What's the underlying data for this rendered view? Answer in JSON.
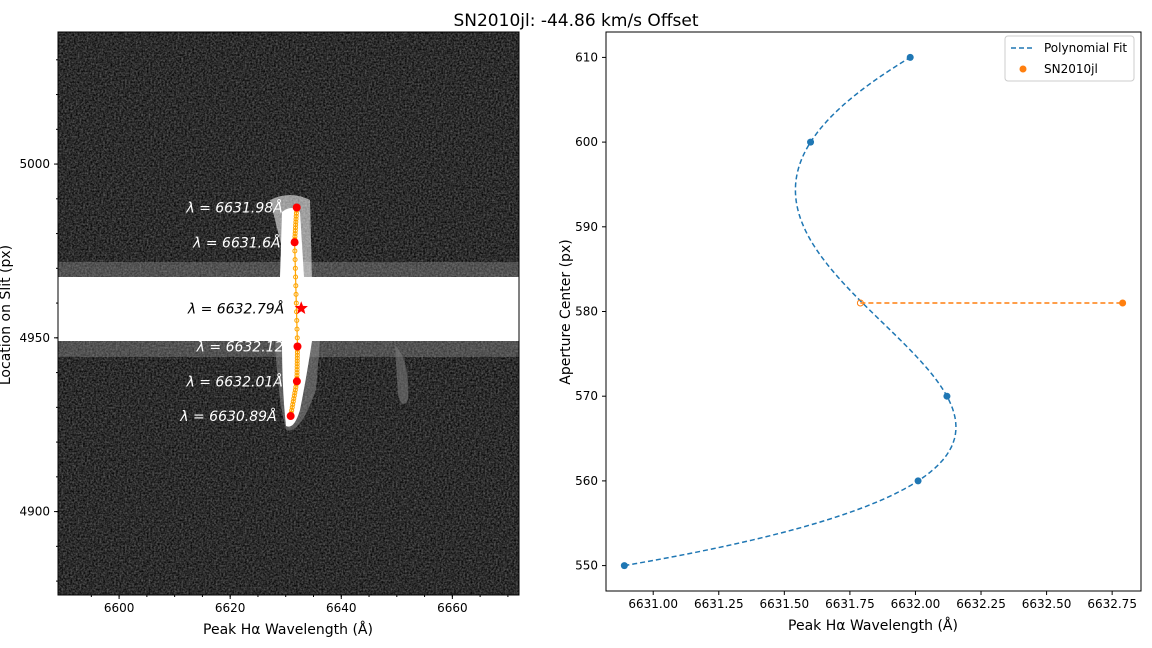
{
  "title": "SN2010jl: -44.86 km/s Offset",
  "chart_data": [
    {
      "type": "image",
      "xlabel": "Peak Hα Wavelength (Å)",
      "ylabel": "Location on Slit (px)",
      "xlim": [
        6589,
        6672
      ],
      "ylim": [
        4876,
        5038
      ],
      "xticks": [
        6600,
        6620,
        6640,
        6660
      ],
      "xtick_labels": [
        "6600",
        "6620",
        "6640",
        "6660"
      ],
      "yticks": [
        4900,
        4950,
        5000
      ],
      "ytick_labels": [
        "4900",
        "4950",
        "5000"
      ],
      "points": [
        {
          "x": 6631.98,
          "y": 4987.5,
          "label": "λ = 6631.98Å"
        },
        {
          "x": 6631.6,
          "y": 4977.5,
          "label": "λ = 6631.6Å"
        },
        {
          "x": 6632.12,
          "y": 4947.5,
          "label": "λ = 6632.12"
        },
        {
          "x": 6632.01,
          "y": 4937.5,
          "label": "λ = 6632.01Å"
        },
        {
          "x": 6630.89,
          "y": 4927.5,
          "label": "λ = 6630.89Å"
        }
      ],
      "star": {
        "x": 6632.79,
        "y": 4958.5,
        "label": "λ = 6632.79Å"
      },
      "colors": {
        "points": "#ff0000",
        "trace": "#ffa500",
        "background": "#000000",
        "band": "#ffffff"
      }
    },
    {
      "type": "line",
      "xlabel": "Peak Hα Wavelength (Å)",
      "ylabel": "Aperture Center (px)",
      "xlim": [
        6630.82,
        6632.86
      ],
      "ylim": [
        547,
        613
      ],
      "xticks": [
        6631.0,
        6631.25,
        6631.5,
        6631.75,
        6632.0,
        6632.25,
        6632.5,
        6632.75
      ],
      "xtick_labels": [
        "6631.00",
        "6631.25",
        "6631.50",
        "6631.75",
        "6632.00",
        "6632.25",
        "6632.50",
        "6632.75"
      ],
      "yticks": [
        550,
        560,
        570,
        580,
        590,
        600,
        610
      ],
      "ytick_labels": [
        "550",
        "560",
        "570",
        "580",
        "590",
        "600",
        "610"
      ],
      "series": [
        {
          "name": "Polynomial Fit",
          "color": "#1f77b4",
          "x": [
            6630.89,
            6632.01,
            6632.12,
            6631.6,
            6631.98
          ],
          "y": [
            550,
            560,
            570,
            600,
            610
          ]
        },
        {
          "name": "SN2010jl",
          "color": "#ff7f0e",
          "x": [
            6631.79,
            6632.79
          ],
          "y": [
            581,
            581
          ]
        }
      ],
      "legend": {
        "position": "top-right",
        "entries": [
          "Polynomial Fit",
          "SN2010jl"
        ]
      }
    }
  ]
}
